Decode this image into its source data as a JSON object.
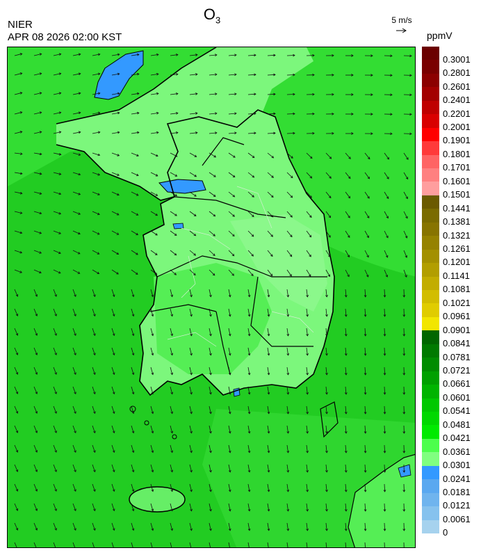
{
  "title": {
    "main": "O",
    "sub": "3"
  },
  "agency": "NIER",
  "timestamp": "APR 08 2026 02:00 KST",
  "wind_reference": {
    "label": "5 m/s"
  },
  "unit": "ppmV",
  "colorbar": {
    "ticks": [
      "0.3001",
      "0.2801",
      "0.2601",
      "0.2401",
      "0.2201",
      "0.2001",
      "0.1901",
      "0.1801",
      "0.1701",
      "0.1601",
      "0.1501",
      "0.1441",
      "0.1381",
      "0.1321",
      "0.1261",
      "0.1201",
      "0.1141",
      "0.1081",
      "0.1021",
      "0.0961",
      "0.0901",
      "0.0841",
      "0.0781",
      "0.0721",
      "0.0661",
      "0.0601",
      "0.0541",
      "0.0481",
      "0.0421",
      "0.0361",
      "0.0301",
      "0.0241",
      "0.0181",
      "0.0121",
      "0.0061",
      "0"
    ],
    "colors": [
      "#6b0000",
      "#7a0000",
      "#8c0000",
      "#a30000",
      "#bf0000",
      "#d90000",
      "#ff0000",
      "#ff3a3a",
      "#ff6464",
      "#ff8080",
      "#ff9e9e",
      "#6b5a00",
      "#7a6b00",
      "#877400",
      "#958200",
      "#a39000",
      "#b29e00",
      "#c2ad00",
      "#d2bd00",
      "#e0cc00",
      "#f2e600",
      "#006600",
      "#007a00",
      "#008c00",
      "#00a000",
      "#00b400",
      "#00c800",
      "#00d800",
      "#00ea00",
      "#4cff4c",
      "#80ff80",
      "#3399ff",
      "#5aa8f0",
      "#6fb4ee",
      "#86c2ee",
      "#a6d2ee"
    ]
  },
  "map_colors": {
    "sea_light": "#33dd33",
    "sea_mid": "#22cc22",
    "land_light": "#7cf77c",
    "land_mid": "#55ee55",
    "low_ozone": "#3399ff",
    "border": "#000000"
  }
}
